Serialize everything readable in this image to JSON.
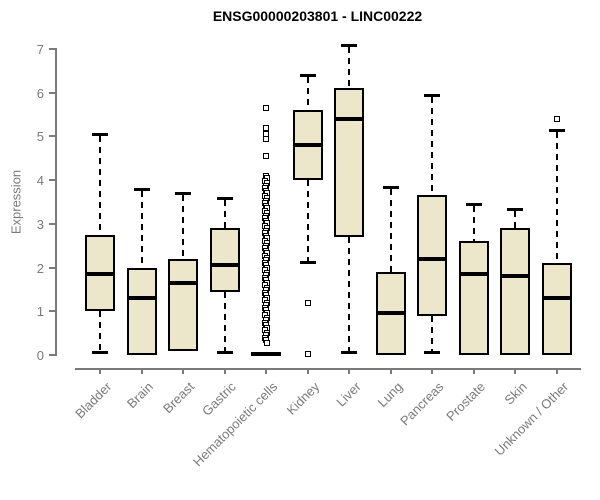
{
  "chart_data": {
    "type": "boxplot",
    "title": "ENSG00000203801 - LINC00222",
    "ylabel": "Expression",
    "yticks": [
      0,
      1,
      2,
      3,
      4,
      5,
      6,
      7
    ],
    "ylim": [
      0,
      7.3
    ],
    "grid": false,
    "legend": "none",
    "colors": {
      "box_fill": "#ECE7CB",
      "box_border": "#000000",
      "axis": "#7a7a7a",
      "title": "#000000"
    },
    "categories": [
      "Bladder",
      "Brain",
      "Breast",
      "Gastric",
      "Hematopoietic cells",
      "Kidney",
      "Liver",
      "Lung",
      "Pancreas",
      "Prostate",
      "Skin",
      "Unknown / Other"
    ],
    "boxes": [
      {
        "label": "Bladder",
        "low": 0.05,
        "q1": 1.0,
        "median": 1.85,
        "q3": 2.75,
        "high": 5.05,
        "outliers": []
      },
      {
        "label": "Brain",
        "low": 0.0,
        "q1": 0.0,
        "median": 1.3,
        "q3": 2.0,
        "high": 3.8,
        "outliers": []
      },
      {
        "label": "Breast",
        "low": 0.1,
        "q1": 0.1,
        "median": 1.65,
        "q3": 2.2,
        "high": 3.7,
        "outliers": []
      },
      {
        "label": "Gastric",
        "low": 0.05,
        "q1": 1.45,
        "median": 2.05,
        "q3": 2.9,
        "high": 3.6,
        "outliers": []
      },
      {
        "label": "Hematopoietic cells",
        "low": 0.0,
        "q1": 0.0,
        "median": 0.03,
        "q3": 0.07,
        "high": 0.07,
        "outliers": [
          4.55,
          4.95,
          5.05,
          5.2,
          5.65
        ],
        "outlier_stack": {
          "from": 0.25,
          "to": 4.1
        }
      },
      {
        "label": "Kidney",
        "low": 2.1,
        "q1": 4.0,
        "median": 4.8,
        "q3": 5.6,
        "high": 6.4,
        "outliers": [
          1.2,
          0.02
        ]
      },
      {
        "label": "Liver",
        "low": 0.05,
        "q1": 2.7,
        "median": 5.4,
        "q3": 6.1,
        "high": 7.1,
        "outliers": []
      },
      {
        "label": "Lung",
        "low": 0.0,
        "q1": 0.0,
        "median": 0.95,
        "q3": 1.9,
        "high": 3.85,
        "outliers": []
      },
      {
        "label": "Pancreas",
        "low": 0.05,
        "q1": 0.9,
        "median": 2.2,
        "q3": 3.65,
        "high": 5.95,
        "outliers": []
      },
      {
        "label": "Prostate",
        "low": 0.0,
        "q1": 0.0,
        "median": 1.85,
        "q3": 2.6,
        "high": 3.45,
        "outliers": []
      },
      {
        "label": "Skin",
        "low": 0.0,
        "q1": 0.0,
        "median": 1.8,
        "q3": 2.9,
        "high": 3.35,
        "outliers": []
      },
      {
        "label": "Unknown / Other",
        "low": 0.0,
        "q1": 0.0,
        "median": 1.3,
        "q3": 2.1,
        "high": 5.15,
        "outliers": [
          5.4
        ]
      }
    ]
  }
}
